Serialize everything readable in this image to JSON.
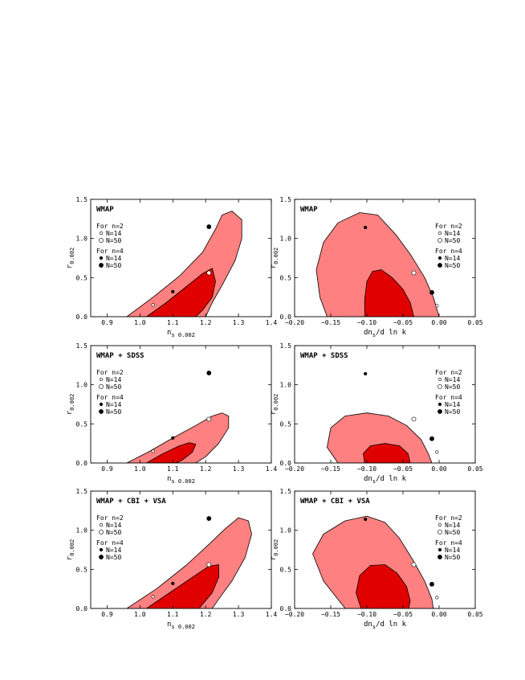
{
  "colors": {
    "outer_contour": "#ff8080",
    "inner_contour": "#e00000",
    "contour_stroke": "#000000",
    "background": "#ffffff"
  },
  "legend": {
    "group1_title": "For n=2",
    "group1_entries": [
      "N=14",
      "N=50"
    ],
    "group2_title": "For n=4",
    "group2_entries": [
      "N=14",
      "N=50"
    ]
  },
  "chart_data": [
    {
      "type": "scatter",
      "id": "p1",
      "row": 0,
      "col": 0,
      "title": "WMAP",
      "xlabel_main": "n",
      "xlabel_sub": "s 0.002",
      "ylabel_main": "r",
      "ylabel_sub": "0.002",
      "xlim": [
        0.85,
        1.4
      ],
      "ylim": [
        0,
        1.5
      ],
      "xticks": [
        0.9,
        1.0,
        1.1,
        1.2,
        1.3,
        1.4
      ],
      "xtick_labels": [
        "0.9",
        "1.0",
        "1.1",
        "1.2",
        "1.3",
        "1.4"
      ],
      "yticks": [
        0,
        0.5,
        1.0,
        1.5
      ],
      "ytick_labels": [
        "0.0",
        "0.5",
        "1.0",
        "1.5"
      ],
      "legend_position": "top-left",
      "grid": false,
      "contour_outer": [
        [
          0.96,
          0.0
        ],
        [
          1.04,
          0.25
        ],
        [
          1.12,
          0.52
        ],
        [
          1.19,
          0.82
        ],
        [
          1.23,
          1.12
        ],
        [
          1.25,
          1.3
        ],
        [
          1.28,
          1.35
        ],
        [
          1.31,
          1.24
        ],
        [
          1.31,
          1.0
        ],
        [
          1.29,
          0.72
        ],
        [
          1.25,
          0.4
        ],
        [
          1.22,
          0.18
        ],
        [
          1.2,
          0.0
        ]
      ],
      "contour_inner": [
        [
          1.02,
          0.0
        ],
        [
          1.08,
          0.18
        ],
        [
          1.14,
          0.38
        ],
        [
          1.19,
          0.55
        ],
        [
          1.22,
          0.62
        ],
        [
          1.23,
          0.45
        ],
        [
          1.22,
          0.25
        ],
        [
          1.19,
          0.08
        ],
        [
          1.17,
          0.0
        ]
      ],
      "series": [
        {
          "name": "n=2 N=14",
          "style": "small-open",
          "x": [
            1.04
          ],
          "y": [
            0.15
          ]
        },
        {
          "name": "n=2 N=50",
          "style": "large-open",
          "x": [
            1.21
          ],
          "y": [
            0.56
          ]
        },
        {
          "name": "n=4 N=14",
          "style": "small-filled",
          "x": [
            1.1
          ],
          "y": [
            0.32
          ]
        },
        {
          "name": "n=4 N=50",
          "style": "large-filled",
          "x": [
            1.21
          ],
          "y": [
            1.15
          ]
        }
      ]
    },
    {
      "type": "scatter",
      "id": "p2",
      "row": 0,
      "col": 1,
      "title": "WMAP",
      "xlabel_main": "dn",
      "xlabel_sub": "s",
      "xlabel_tail": "/d ln k",
      "ylabel_main": "r",
      "ylabel_sub": "0.002",
      "xlim": [
        -0.2,
        0.05
      ],
      "ylim": [
        0,
        1.5
      ],
      "xticks": [
        -0.2,
        -0.15,
        -0.1,
        -0.05,
        0.0,
        0.05
      ],
      "xtick_labels": [
        "−0.20",
        "−0.15",
        "−0.10",
        "−0.05",
        "0.00",
        "0.05"
      ],
      "yticks": [
        0,
        0.5,
        1.0,
        1.5
      ],
      "ytick_labels": [
        "0.0",
        "0.5",
        "1.0",
        "1.5"
      ],
      "legend_position": "top-right",
      "grid": false,
      "contour_outer": [
        [
          -0.155,
          0.0
        ],
        [
          -0.165,
          0.25
        ],
        [
          -0.17,
          0.6
        ],
        [
          -0.16,
          0.95
        ],
        [
          -0.14,
          1.2
        ],
        [
          -0.11,
          1.33
        ],
        [
          -0.085,
          1.3
        ],
        [
          -0.06,
          1.05
        ],
        [
          -0.04,
          0.8
        ],
        [
          -0.02,
          0.5
        ],
        [
          -0.008,
          0.25
        ],
        [
          0.0,
          0.0
        ]
      ],
      "contour_inner": [
        [
          -0.103,
          0.0
        ],
        [
          -0.103,
          0.22
        ],
        [
          -0.1,
          0.45
        ],
        [
          -0.092,
          0.58
        ],
        [
          -0.08,
          0.6
        ],
        [
          -0.065,
          0.5
        ],
        [
          -0.05,
          0.35
        ],
        [
          -0.04,
          0.18
        ],
        [
          -0.035,
          0.0
        ]
      ],
      "series": [
        {
          "name": "n=2 N=14",
          "style": "small-open",
          "x": [
            -0.003
          ],
          "y": [
            0.14
          ]
        },
        {
          "name": "n=2 N=50",
          "style": "large-open",
          "x": [
            -0.035
          ],
          "y": [
            0.56
          ]
        },
        {
          "name": "n=4 N=14",
          "style": "small-filled",
          "x": [
            -0.102
          ],
          "y": [
            1.14
          ]
        },
        {
          "name": "n=4 N=50",
          "style": "large-filled",
          "x": [
            -0.01
          ],
          "y": [
            0.31
          ]
        }
      ]
    },
    {
      "type": "scatter",
      "id": "p3",
      "row": 1,
      "col": 0,
      "title": "WMAP + SDSS",
      "xlabel_main": "n",
      "xlabel_sub": "s 0.002",
      "ylabel_main": "r",
      "ylabel_sub": "0.002",
      "xlim": [
        0.85,
        1.4
      ],
      "ylim": [
        0,
        1.5
      ],
      "xticks": [
        0.9,
        1.0,
        1.1,
        1.2,
        1.3,
        1.4
      ],
      "xtick_labels": [
        "0.9",
        "1.0",
        "1.1",
        "1.2",
        "1.3",
        "1.4"
      ],
      "yticks": [
        0,
        0.5,
        1.0,
        1.5
      ],
      "ytick_labels": [
        "0.0",
        "0.5",
        "1.0",
        "1.5"
      ],
      "legend_position": "top-left",
      "grid": false,
      "contour_outer": [
        [
          0.96,
          0.0
        ],
        [
          1.03,
          0.15
        ],
        [
          1.1,
          0.32
        ],
        [
          1.17,
          0.48
        ],
        [
          1.22,
          0.6
        ],
        [
          1.25,
          0.64
        ],
        [
          1.27,
          0.6
        ],
        [
          1.27,
          0.45
        ],
        [
          1.24,
          0.25
        ],
        [
          1.2,
          0.08
        ],
        [
          1.17,
          0.0
        ]
      ],
      "contour_inner": [
        [
          1.02,
          0.0
        ],
        [
          1.07,
          0.12
        ],
        [
          1.12,
          0.22
        ],
        [
          1.15,
          0.26
        ],
        [
          1.17,
          0.24
        ],
        [
          1.16,
          0.14
        ],
        [
          1.13,
          0.04
        ],
        [
          1.11,
          0.0
        ]
      ],
      "series": [
        {
          "name": "n=2 N=14",
          "style": "small-open",
          "x": [
            1.04
          ],
          "y": [
            0.15
          ]
        },
        {
          "name": "n=2 N=50",
          "style": "large-open",
          "x": [
            1.21
          ],
          "y": [
            0.56
          ]
        },
        {
          "name": "n=4 N=14",
          "style": "small-filled",
          "x": [
            1.1
          ],
          "y": [
            0.32
          ]
        },
        {
          "name": "n=4 N=50",
          "style": "large-filled",
          "x": [
            1.21
          ],
          "y": [
            1.15
          ]
        }
      ]
    },
    {
      "type": "scatter",
      "id": "p4",
      "row": 1,
      "col": 1,
      "title": "WMAP + SDSS",
      "xlabel_main": "dn",
      "xlabel_sub": "s",
      "xlabel_tail": "/d ln k",
      "ylabel_main": "r",
      "ylabel_sub": "0.002",
      "xlim": [
        -0.2,
        0.05
      ],
      "ylim": [
        0,
        1.5
      ],
      "xticks": [
        -0.2,
        -0.15,
        -0.1,
        -0.05,
        0.0,
        0.05
      ],
      "xtick_labels": [
        "−0.20",
        "−0.15",
        "−0.10",
        "−0.05",
        "0.00",
        "0.05"
      ],
      "yticks": [
        0,
        0.5,
        1.0,
        1.5
      ],
      "ytick_labels": [
        "0.0",
        "0.5",
        "1.0",
        "1.5"
      ],
      "legend_position": "top-right",
      "grid": false,
      "contour_outer": [
        [
          -0.14,
          0.0
        ],
        [
          -0.155,
          0.2
        ],
        [
          -0.15,
          0.45
        ],
        [
          -0.13,
          0.6
        ],
        [
          -0.1,
          0.64
        ],
        [
          -0.07,
          0.6
        ],
        [
          -0.045,
          0.48
        ],
        [
          -0.025,
          0.3
        ],
        [
          -0.015,
          0.12
        ],
        [
          -0.01,
          0.0
        ]
      ],
      "contour_inner": [
        [
          -0.103,
          0.0
        ],
        [
          -0.105,
          0.12
        ],
        [
          -0.095,
          0.22
        ],
        [
          -0.075,
          0.25
        ],
        [
          -0.055,
          0.22
        ],
        [
          -0.043,
          0.12
        ],
        [
          -0.04,
          0.0
        ]
      ],
      "series": [
        {
          "name": "n=2 N=14",
          "style": "small-open",
          "x": [
            -0.003
          ],
          "y": [
            0.14
          ]
        },
        {
          "name": "n=2 N=50",
          "style": "large-open",
          "x": [
            -0.035
          ],
          "y": [
            0.56
          ]
        },
        {
          "name": "n=4 N=14",
          "style": "small-filled",
          "x": [
            -0.102
          ],
          "y": [
            1.14
          ]
        },
        {
          "name": "n=4 N=50",
          "style": "large-filled",
          "x": [
            -0.01
          ],
          "y": [
            0.31
          ]
        }
      ]
    },
    {
      "type": "scatter",
      "id": "p5",
      "row": 2,
      "col": 0,
      "title": "WMAP + CBI + VSA",
      "xlabel_main": "n",
      "xlabel_sub": "s 0.002",
      "ylabel_main": "r",
      "ylabel_sub": "0.002",
      "xlim": [
        0.85,
        1.4
      ],
      "ylim": [
        0,
        1.5
      ],
      "xticks": [
        0.9,
        1.0,
        1.1,
        1.2,
        1.3,
        1.4
      ],
      "xtick_labels": [
        "0.9",
        "1.0",
        "1.1",
        "1.2",
        "1.3",
        "1.4"
      ],
      "yticks": [
        0,
        0.5,
        1.0,
        1.5
      ],
      "ytick_labels": [
        "0.0",
        "0.5",
        "1.0",
        "1.5"
      ],
      "legend_position": "top-left",
      "grid": false,
      "contour_outer": [
        [
          0.96,
          0.0
        ],
        [
          1.05,
          0.25
        ],
        [
          1.14,
          0.55
        ],
        [
          1.21,
          0.82
        ],
        [
          1.26,
          1.02
        ],
        [
          1.3,
          1.16
        ],
        [
          1.33,
          1.12
        ],
        [
          1.34,
          0.95
        ],
        [
          1.32,
          0.65
        ],
        [
          1.28,
          0.35
        ],
        [
          1.24,
          0.12
        ],
        [
          1.22,
          0.0
        ]
      ],
      "contour_inner": [
        [
          1.02,
          0.0
        ],
        [
          1.09,
          0.2
        ],
        [
          1.16,
          0.4
        ],
        [
          1.21,
          0.54
        ],
        [
          1.24,
          0.56
        ],
        [
          1.24,
          0.4
        ],
        [
          1.22,
          0.2
        ],
        [
          1.19,
          0.05
        ],
        [
          1.18,
          0.0
        ]
      ],
      "series": [
        {
          "name": "n=2 N=14",
          "style": "small-open",
          "x": [
            1.04
          ],
          "y": [
            0.15
          ]
        },
        {
          "name": "n=2 N=50",
          "style": "large-open",
          "x": [
            1.21
          ],
          "y": [
            0.56
          ]
        },
        {
          "name": "n=4 N=14",
          "style": "small-filled",
          "x": [
            1.1
          ],
          "y": [
            0.32
          ]
        },
        {
          "name": "n=4 N=50",
          "style": "large-filled",
          "x": [
            1.21
          ],
          "y": [
            1.15
          ]
        }
      ]
    },
    {
      "type": "scatter",
      "id": "p6",
      "row": 2,
      "col": 1,
      "title": "WMAP + CBI + VSA",
      "xlabel_main": "dn",
      "xlabel_sub": "s",
      "xlabel_tail": "/d ln k",
      "ylabel_main": "r",
      "ylabel_sub": "0.002",
      "xlim": [
        -0.2,
        0.05
      ],
      "ylim": [
        0,
        1.5
      ],
      "xticks": [
        -0.2,
        -0.15,
        -0.1,
        -0.05,
        0.0,
        0.05
      ],
      "xtick_labels": [
        "−0.20",
        "−0.15",
        "−0.10",
        "−0.05",
        "0.00",
        "0.05"
      ],
      "yticks": [
        0,
        0.5,
        1.0,
        1.5
      ],
      "ytick_labels": [
        "0.0",
        "0.5",
        "1.0",
        "1.5"
      ],
      "legend_position": "top-right",
      "grid": false,
      "contour_outer": [
        [
          -0.13,
          0.0
        ],
        [
          -0.16,
          0.35
        ],
        [
          -0.175,
          0.7
        ],
        [
          -0.16,
          0.95
        ],
        [
          -0.13,
          1.12
        ],
        [
          -0.1,
          1.18
        ],
        [
          -0.075,
          1.1
        ],
        [
          -0.055,
          0.9
        ],
        [
          -0.035,
          0.6
        ],
        [
          -0.02,
          0.35
        ],
        [
          -0.01,
          0.12
        ],
        [
          -0.008,
          0.0
        ]
      ],
      "contour_inner": [
        [
          -0.108,
          0.0
        ],
        [
          -0.115,
          0.2
        ],
        [
          -0.11,
          0.42
        ],
        [
          -0.095,
          0.55
        ],
        [
          -0.075,
          0.56
        ],
        [
          -0.058,
          0.45
        ],
        [
          -0.045,
          0.28
        ],
        [
          -0.04,
          0.1
        ],
        [
          -0.042,
          0.0
        ]
      ],
      "series": [
        {
          "name": "n=2 N=14",
          "style": "small-open",
          "x": [
            -0.003
          ],
          "y": [
            0.14
          ]
        },
        {
          "name": "n=2 N=50",
          "style": "large-open",
          "x": [
            -0.035
          ],
          "y": [
            0.56
          ]
        },
        {
          "name": "n=4 N=14",
          "style": "small-filled",
          "x": [
            -0.102
          ],
          "y": [
            1.14
          ]
        },
        {
          "name": "n=4 N=50",
          "style": "large-filled",
          "x": [
            -0.01
          ],
          "y": [
            0.31
          ]
        }
      ]
    }
  ]
}
